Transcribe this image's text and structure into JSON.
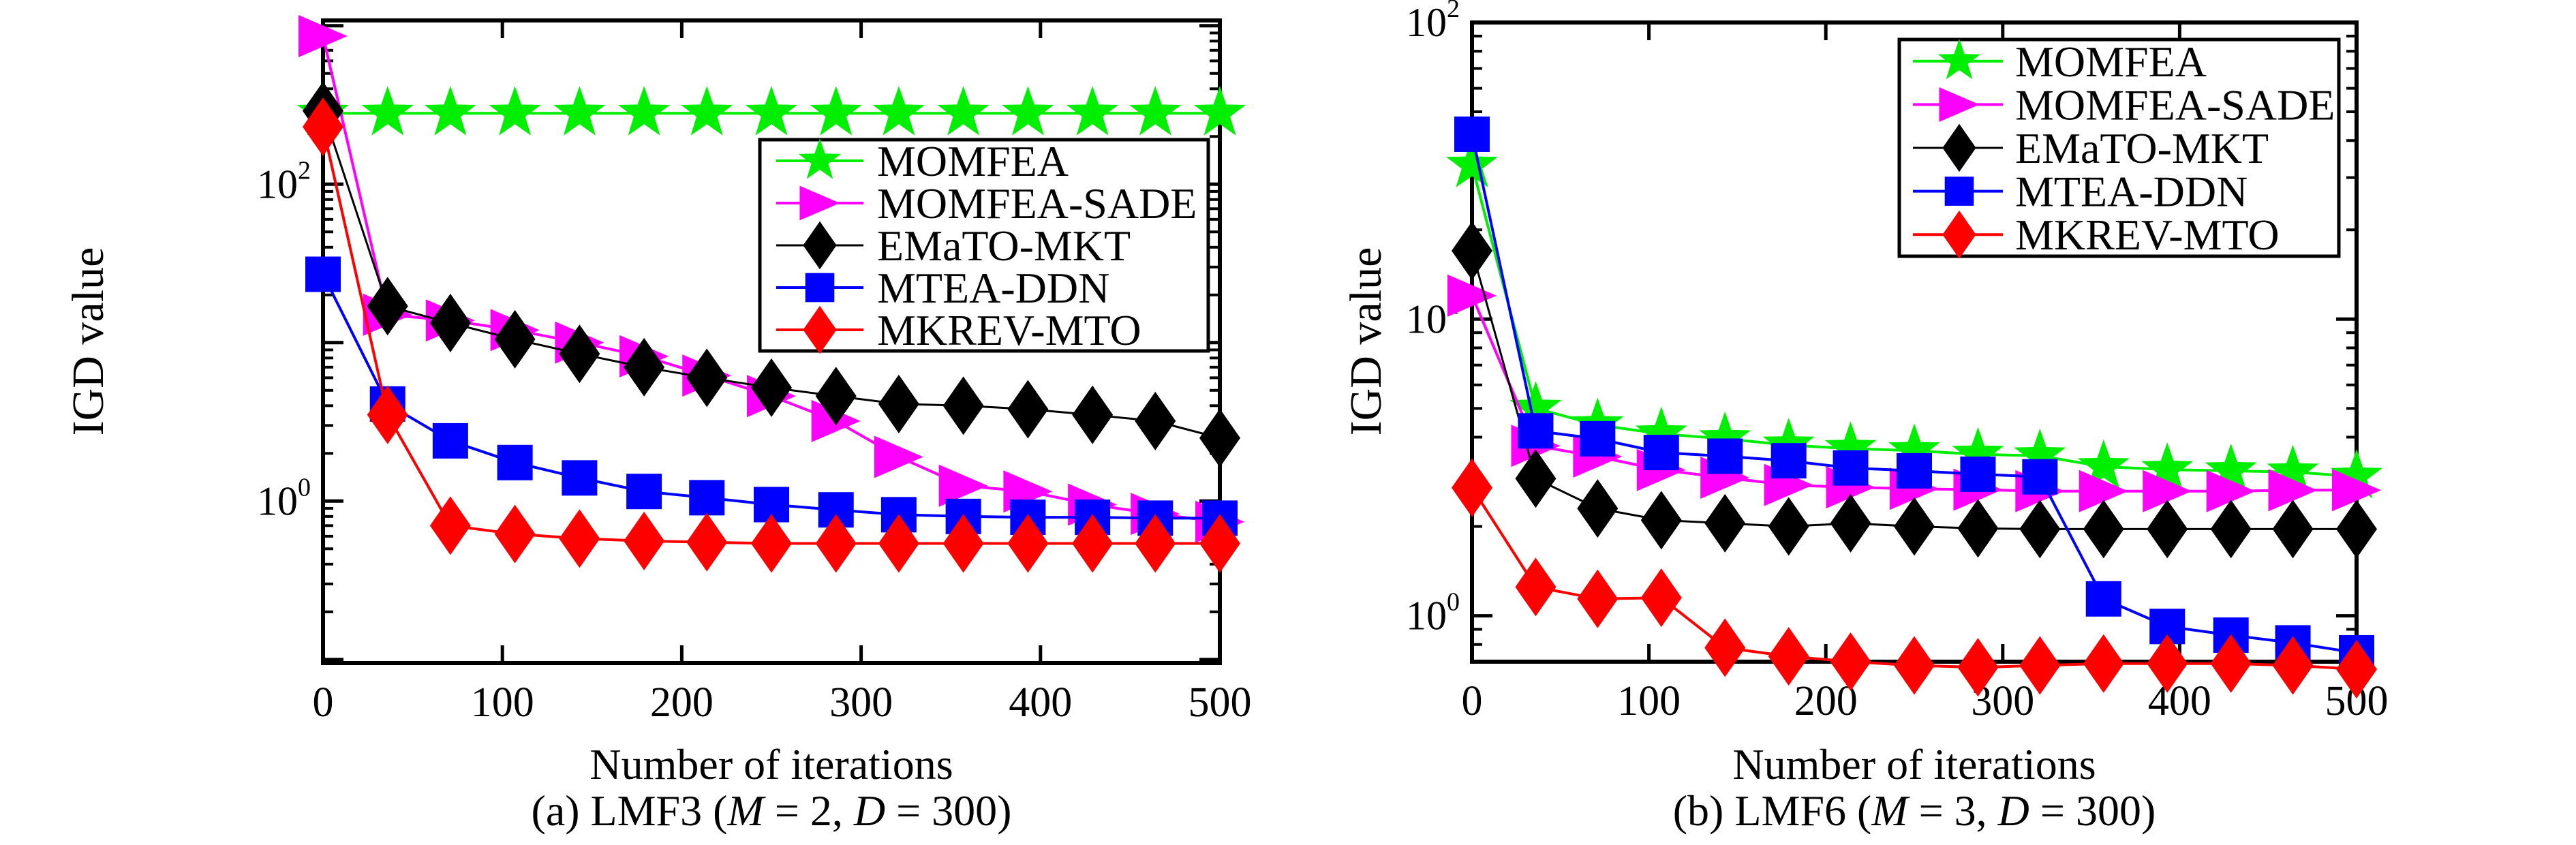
{
  "figure": {
    "background": "#ffffff",
    "text_color": "#000000"
  },
  "chart_data": [
    {
      "type": "line",
      "panel": "a",
      "caption": "(a) LMF3 (M = 2, D = 300)",
      "caption_parts": [
        {
          "t": "(a) LMF3 ("
        },
        {
          "t": "M",
          "i": true
        },
        {
          "t": " = 2, "
        },
        {
          "t": "D",
          "i": true
        },
        {
          "t": " = 300)"
        }
      ],
      "xlabel": "Number of iterations",
      "ylabel": "IGD value",
      "x": [
        0,
        36,
        71,
        107,
        143,
        179,
        214,
        250,
        286,
        321,
        357,
        393,
        429,
        464,
        500
      ],
      "xticks": [
        0,
        100,
        200,
        300,
        400,
        500
      ],
      "xlim": [
        0,
        500
      ],
      "ylim": [
        0.095,
        1080
      ],
      "yscale": "log",
      "ytick_label_exps": [
        2,
        0
      ],
      "grid": false,
      "legend_location": "inside upper right",
      "legend_labels": [
        "MOMFEA",
        "MOMFEA-SADE",
        "EMaTO-MKT",
        "MTEA-DDN",
        "MKREV-MTO"
      ],
      "series": [
        {
          "name": "MOMFEA",
          "color": "#00ee00",
          "marker": "star",
          "values": [
            280,
            280,
            280,
            280,
            280,
            280,
            280,
            280,
            280,
            280,
            280,
            280,
            280,
            280,
            280
          ]
        },
        {
          "name": "MOMFEA-SADE",
          "color": "#ff00ff",
          "marker": "triangle-right",
          "values": [
            860,
            15,
            13.8,
            12,
            10,
            8.2,
            6.2,
            4.6,
            3.2,
            1.9,
            1.25,
            1.15,
            0.95,
            0.83,
            0.74
          ]
        },
        {
          "name": "EMaTO-MKT",
          "color": "#000000",
          "marker": "diamond",
          "values": [
            290,
            17,
            13.3,
            10.5,
            8.5,
            7.0,
            6.0,
            5.2,
            4.6,
            4.1,
            4.0,
            3.8,
            3.5,
            3.2,
            2.5
          ]
        },
        {
          "name": "MTEA-DDN",
          "color": "#0000ff",
          "marker": "square",
          "values": [
            27,
            4.1,
            2.4,
            1.75,
            1.4,
            1.15,
            1.05,
            0.95,
            0.88,
            0.82,
            0.8,
            0.79,
            0.79,
            0.78,
            0.78
          ]
        },
        {
          "name": "MKREV-MTO",
          "color": "#ff0000",
          "marker": "diamond",
          "values": [
            230,
            3.5,
            0.7,
            0.62,
            0.58,
            0.56,
            0.55,
            0.54,
            0.54,
            0.54,
            0.54,
            0.54,
            0.54,
            0.54,
            0.54
          ]
        }
      ]
    },
    {
      "type": "line",
      "panel": "b",
      "caption": "(b) LMF6 (M = 3, D = 300)",
      "caption_parts": [
        {
          "t": "(b) LMF6 ("
        },
        {
          "t": "M",
          "i": true
        },
        {
          "t": " = 3, "
        },
        {
          "t": "D",
          "i": true
        },
        {
          "t": " = 300)"
        }
      ],
      "xlabel": "Number of iterations",
      "ylabel": "IGD value",
      "x": [
        0,
        36,
        71,
        107,
        143,
        179,
        214,
        250,
        286,
        321,
        357,
        393,
        429,
        464,
        500
      ],
      "xticks": [
        0,
        100,
        200,
        300,
        400,
        500
      ],
      "xlim": [
        0,
        500
      ],
      "ylim": [
        0.7,
        100
      ],
      "yscale": "log",
      "ytick_label_exps": [
        2,
        1,
        0
      ],
      "grid": false,
      "legend_location": "inside upper right",
      "legend_labels": [
        "MOMFEA",
        "MOMFEA-SADE",
        "EMaTO-MKT",
        "MTEA-DDN",
        "MKREV-MTO"
      ],
      "series": [
        {
          "name": "MOMFEA",
          "color": "#00ee00",
          "marker": "star",
          "values": [
            33,
            5.0,
            4.4,
            4.1,
            3.95,
            3.76,
            3.66,
            3.6,
            3.5,
            3.46,
            3.18,
            3.11,
            3.08,
            3.05,
            2.95
          ]
        },
        {
          "name": "MOMFEA-SADE",
          "color": "#ff00ff",
          "marker": "triangle-right",
          "values": [
            12,
            3.74,
            3.44,
            3.1,
            2.92,
            2.76,
            2.71,
            2.68,
            2.66,
            2.63,
            2.63,
            2.63,
            2.63,
            2.65,
            2.65
          ]
        },
        {
          "name": "EMaTO-MKT",
          "color": "#000000",
          "marker": "diamond",
          "values": [
            17,
            2.9,
            2.3,
            2.1,
            2.05,
            2.0,
            2.05,
            2.0,
            1.97,
            1.96,
            1.96,
            1.96,
            1.96,
            1.96,
            1.96
          ]
        },
        {
          "name": "MTEA-DDN",
          "color": "#0000ff",
          "marker": "square",
          "values": [
            42,
            4.2,
            3.95,
            3.55,
            3.45,
            3.33,
            3.15,
            3.08,
            3.0,
            2.94,
            1.14,
            0.92,
            0.86,
            0.81,
            0.75
          ]
        },
        {
          "name": "MKREV-MTO",
          "color": "#ff0000",
          "marker": "diamond",
          "values": [
            2.7,
            1.25,
            1.14,
            1.15,
            0.78,
            0.73,
            0.7,
            0.68,
            0.67,
            0.68,
            0.69,
            0.69,
            0.69,
            0.68,
            0.66
          ]
        }
      ]
    }
  ]
}
